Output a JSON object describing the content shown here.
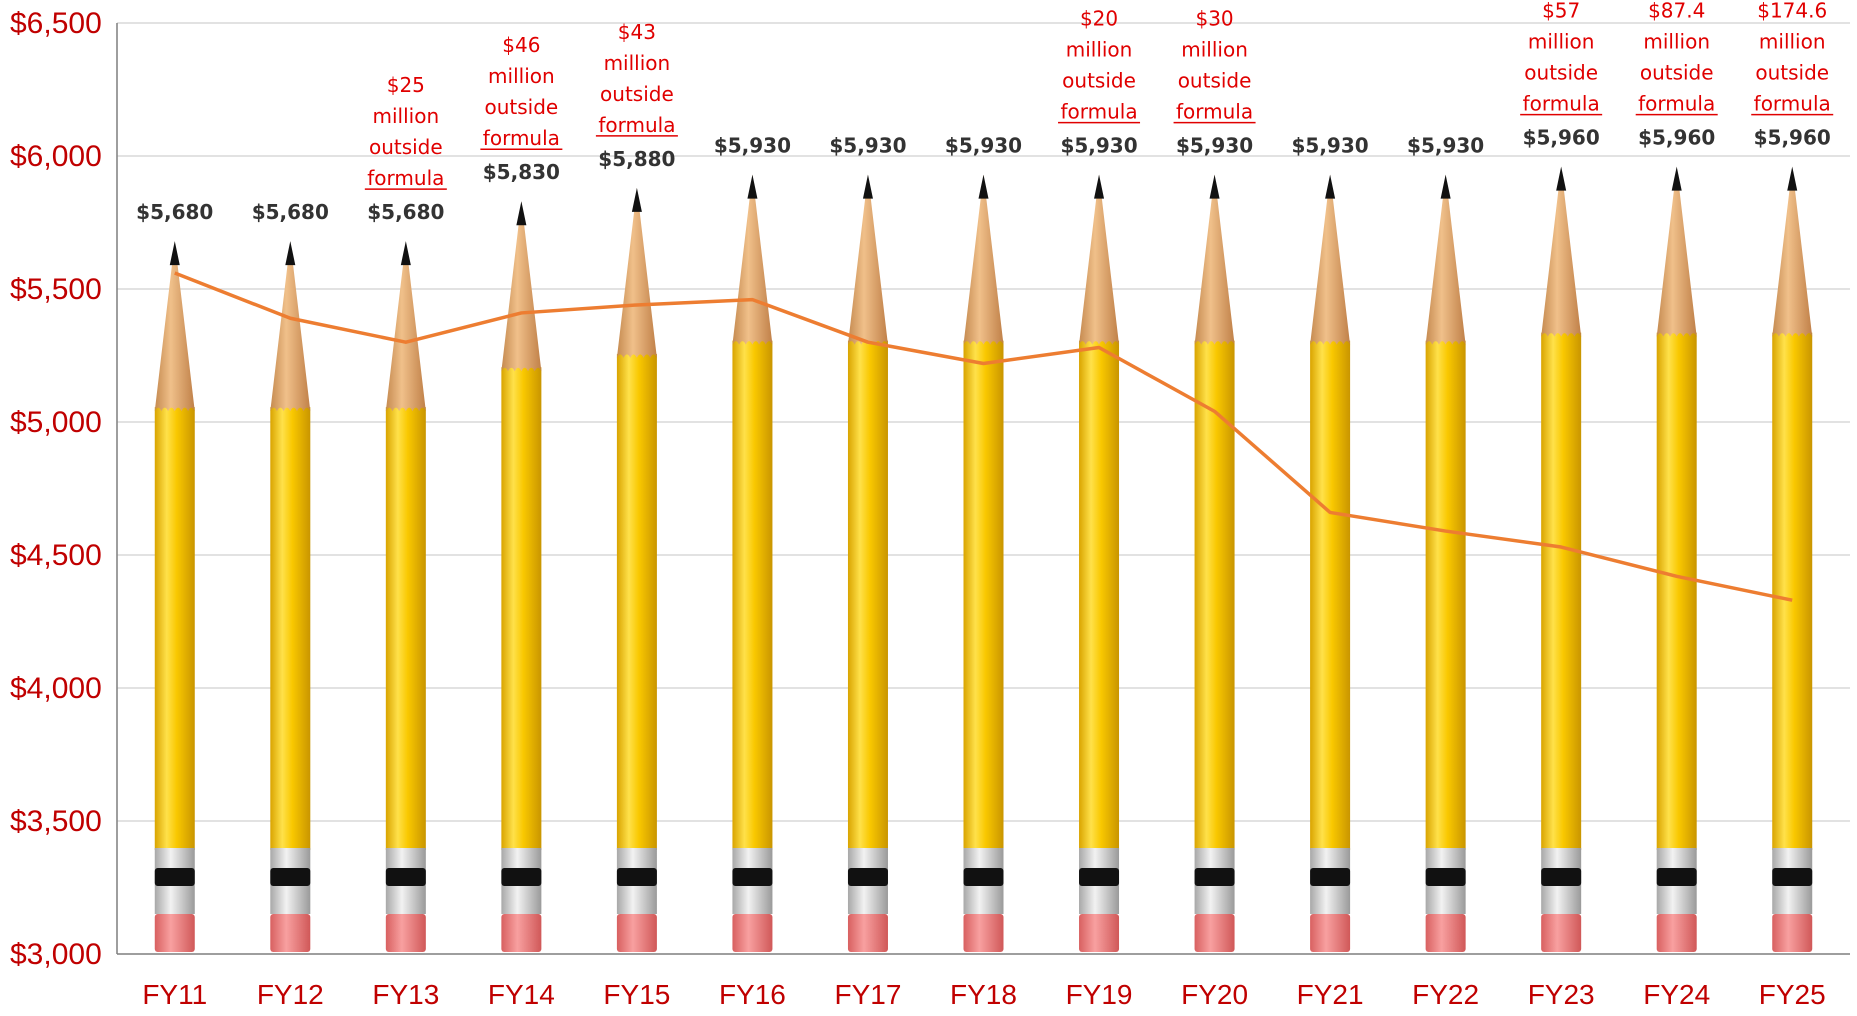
{
  "chart_data": {
    "type": "bar",
    "title": "",
    "xlabel": "",
    "ylabel": "",
    "ylim": [
      3000,
      6500
    ],
    "y_ticks": [
      "$3,000",
      "$3,500",
      "$4,000",
      "$4,500",
      "$5,000",
      "$5,500",
      "$6,000",
      "$6,500"
    ],
    "y_tick_values": [
      3000,
      3500,
      4000,
      4500,
      5000,
      5500,
      6000,
      6500
    ],
    "grid": true,
    "bar_style": "pencil",
    "categories": [
      "FY11",
      "FY12",
      "FY13",
      "FY14",
      "FY15",
      "FY16",
      "FY17",
      "FY18",
      "FY19",
      "FY20",
      "FY21",
      "FY22",
      "FY23",
      "FY24",
      "FY25"
    ],
    "series": [
      {
        "type": "bar",
        "values": [
          5680,
          5680,
          5680,
          5830,
          5880,
          5930,
          5930,
          5930,
          5930,
          5930,
          5930,
          5930,
          5960,
          5960,
          5960
        ],
        "labels": [
          "$5,680",
          "$5,680",
          "$5,680",
          "$5,830",
          "$5,880",
          "$5,930",
          "$5,930",
          "$5,930",
          "$5,930",
          "$5,930",
          "$5,930",
          "$5,930",
          "$5,960",
          "$5,960",
          "$5,960"
        ],
        "color": "#f7c600"
      },
      {
        "type": "line",
        "values": [
          5560,
          5390,
          5300,
          5410,
          5440,
          5460,
          5300,
          5220,
          5280,
          5040,
          4660,
          4590,
          4530,
          4420,
          4330
        ],
        "color": "#ed7d31"
      }
    ],
    "annotations": [
      null,
      null,
      [
        "$25",
        "million",
        "outside",
        "formula"
      ],
      [
        "$46",
        "million",
        "outside",
        "formula"
      ],
      [
        "$43",
        "million",
        "outside",
        "formula"
      ],
      null,
      null,
      null,
      [
        "$20",
        "million",
        "outside",
        "formula"
      ],
      [
        "$30",
        "million",
        "outside",
        "formula"
      ],
      null,
      null,
      [
        "$57",
        "million",
        "outside",
        "formula"
      ],
      [
        "$87.4",
        "million",
        "outside",
        "formula"
      ],
      [
        "$174.6",
        "million",
        "outside",
        "formula"
      ]
    ],
    "colors": {
      "axis_text": "#c00000",
      "annotation": "#e00000",
      "value_label": "#333333",
      "gridline": "#d9d9d9",
      "pencil_body": "#f7c600",
      "pencil_wood": "#e0a870",
      "pencil_eraser": "#f08080",
      "line": "#ed7d31"
    }
  }
}
